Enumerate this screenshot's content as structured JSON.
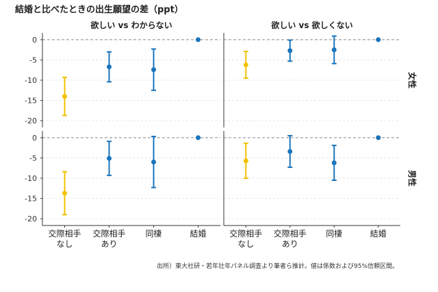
{
  "title": "結婚と比べたときの出生願望の差（ppt）",
  "source_note": "出所）東大社研・若年壮年パネル調査より筆者ら推計。値は係数および95%信頼区間。",
  "colors": {
    "no_partner": "#f2c200",
    "others": "#1a74bb",
    "axis": "#333333",
    "grid": "#e6e6e6",
    "zero_line": "#888888"
  },
  "chart_data": {
    "type": "scatter",
    "subtype": "point-range (coefficient plot), faceted",
    "col_labels": [
      "欲しい vs わからない",
      "欲しい vs 欲しくない"
    ],
    "row_labels": [
      "女性",
      "男性"
    ],
    "categories": [
      "交際相手\nなし",
      "交際相手\nあり",
      "同棲",
      "結婚"
    ],
    "yticks": [
      0,
      -5,
      -10,
      -15,
      -20
    ],
    "ylim": [
      -21,
      1
    ],
    "grid": true,
    "panels": [
      {
        "col": 0,
        "row": 0,
        "points": [
          {
            "category": "交際相手\nなし",
            "estimate": -14.0,
            "low": -18.7,
            "high": -9.3
          },
          {
            "category": "交際相手\nあり",
            "estimate": -6.7,
            "low": -10.4,
            "high": -3.0
          },
          {
            "category": "同棲",
            "estimate": -7.4,
            "low": -12.5,
            "high": -2.3
          },
          {
            "category": "結婚",
            "estimate": 0,
            "low": 0,
            "high": 0
          }
        ]
      },
      {
        "col": 1,
        "row": 0,
        "points": [
          {
            "category": "交際相手\nなし",
            "estimate": -6.2,
            "low": -9.5,
            "high": -2.9
          },
          {
            "category": "交際相手\nあり",
            "estimate": -2.7,
            "low": -5.3,
            "high": -0.1
          },
          {
            "category": "同棲",
            "estimate": -2.5,
            "low": -5.9,
            "high": 0.9
          },
          {
            "category": "結婚",
            "estimate": 0,
            "low": 0,
            "high": 0
          }
        ]
      },
      {
        "col": 0,
        "row": 1,
        "points": [
          {
            "category": "交際相手\nなし",
            "estimate": -13.7,
            "low": -19.0,
            "high": -8.4
          },
          {
            "category": "交際相手\nあり",
            "estimate": -5.1,
            "low": -9.3,
            "high": -0.9
          },
          {
            "category": "同棲",
            "estimate": -6.0,
            "low": -12.3,
            "high": 0.3
          },
          {
            "category": "結婚",
            "estimate": 0,
            "low": 0,
            "high": 0
          }
        ]
      },
      {
        "col": 1,
        "row": 1,
        "points": [
          {
            "category": "交際相手\nなし",
            "estimate": -5.7,
            "low": -10.0,
            "high": -1.4
          },
          {
            "category": "交際相手\nあり",
            "estimate": -3.4,
            "low": -7.3,
            "high": 0.5
          },
          {
            "category": "同棲",
            "estimate": -6.2,
            "low": -10.5,
            "high": -1.9
          },
          {
            "category": "結婚",
            "estimate": 0,
            "low": 0,
            "high": 0
          }
        ]
      }
    ]
  }
}
